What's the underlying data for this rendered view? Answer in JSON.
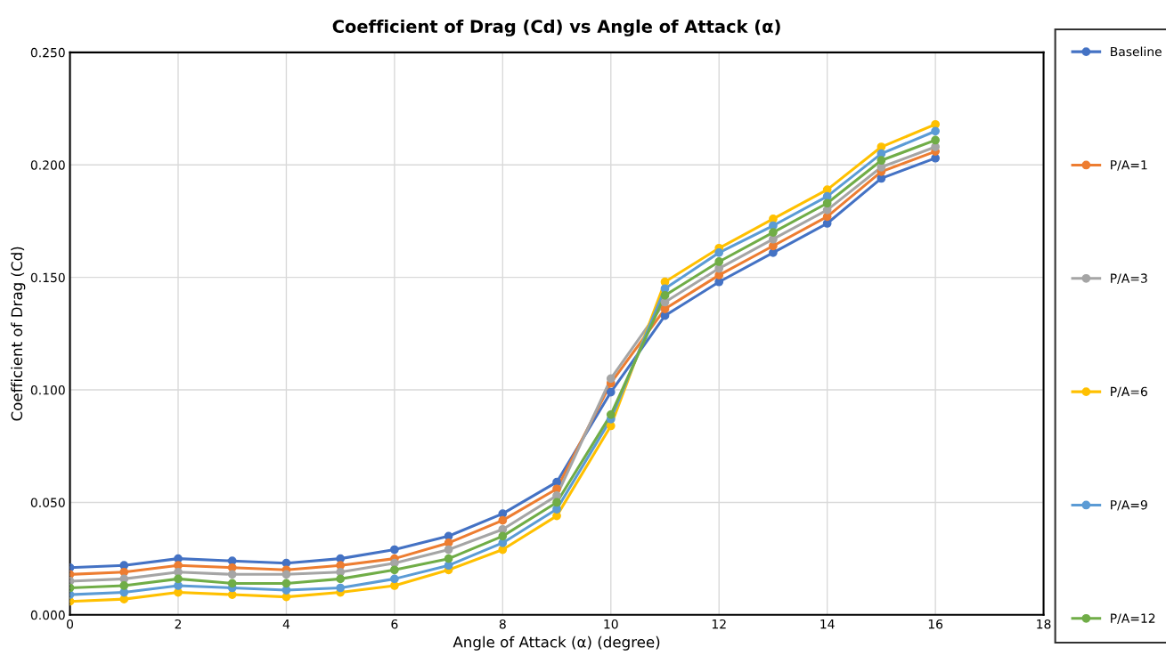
{
  "chart_data": {
    "type": "line",
    "title": "Coefficient of Drag (Cd) vs Angle of Attack (α)",
    "xlabel": "Angle of Attack (α) (degree)",
    "ylabel": "Coefficient of Drag (Cd)",
    "x": [
      0,
      1,
      2,
      3,
      4,
      5,
      6,
      7,
      8,
      9,
      10,
      11,
      12,
      13,
      14,
      15,
      16
    ],
    "series": [
      {
        "name": "Baseline",
        "color": "#4472c4",
        "values": [
          0.021,
          0.022,
          0.025,
          0.024,
          0.023,
          0.025,
          0.029,
          0.035,
          0.045,
          0.059,
          0.099,
          0.133,
          0.148,
          0.161,
          0.174,
          0.194,
          0.203
        ]
      },
      {
        "name": "P/A=1",
        "color": "#ed7d31",
        "values": [
          0.018,
          0.019,
          0.022,
          0.021,
          0.02,
          0.022,
          0.025,
          0.032,
          0.042,
          0.056,
          0.103,
          0.136,
          0.151,
          0.164,
          0.177,
          0.197,
          0.206
        ]
      },
      {
        "name": "P/A=3",
        "color": "#a5a5a5",
        "values": [
          0.015,
          0.016,
          0.019,
          0.018,
          0.018,
          0.019,
          0.023,
          0.029,
          0.038,
          0.053,
          0.105,
          0.139,
          0.154,
          0.167,
          0.18,
          0.199,
          0.208
        ]
      },
      {
        "name": "P/A=6",
        "color": "#ffc000",
        "values": [
          0.006,
          0.007,
          0.01,
          0.009,
          0.008,
          0.01,
          0.013,
          0.02,
          0.029,
          0.044,
          0.084,
          0.148,
          0.163,
          0.176,
          0.189,
          0.208,
          0.218
        ]
      },
      {
        "name": "P/A=9",
        "color": "#5b9bd5",
        "values": [
          0.009,
          0.01,
          0.013,
          0.012,
          0.011,
          0.012,
          0.016,
          0.022,
          0.032,
          0.047,
          0.087,
          0.145,
          0.161,
          0.173,
          0.186,
          0.205,
          0.215
        ]
      },
      {
        "name": "P/A=12",
        "color": "#70ad47",
        "values": [
          0.012,
          0.013,
          0.016,
          0.014,
          0.014,
          0.016,
          0.02,
          0.025,
          0.035,
          0.05,
          0.089,
          0.142,
          0.157,
          0.17,
          0.183,
          0.202,
          0.211
        ]
      }
    ],
    "xlim": [
      0,
      18
    ],
    "xticks": [
      0,
      2,
      4,
      6,
      8,
      10,
      12,
      14,
      16,
      18
    ],
    "ylim": [
      0,
      0.25
    ],
    "yticks": [
      {
        "value": 0,
        "label": "0.000"
      },
      {
        "value": 0.05,
        "label": "0.050"
      },
      {
        "value": 0.1,
        "label": "0.100"
      },
      {
        "value": 0.15,
        "label": "0.150"
      },
      {
        "value": 0.2,
        "label": "0.200"
      },
      {
        "value": 0.25,
        "label": "0.250"
      }
    ],
    "grid": true,
    "legend": "right",
    "marker": "circle",
    "line_style": "solid"
  }
}
